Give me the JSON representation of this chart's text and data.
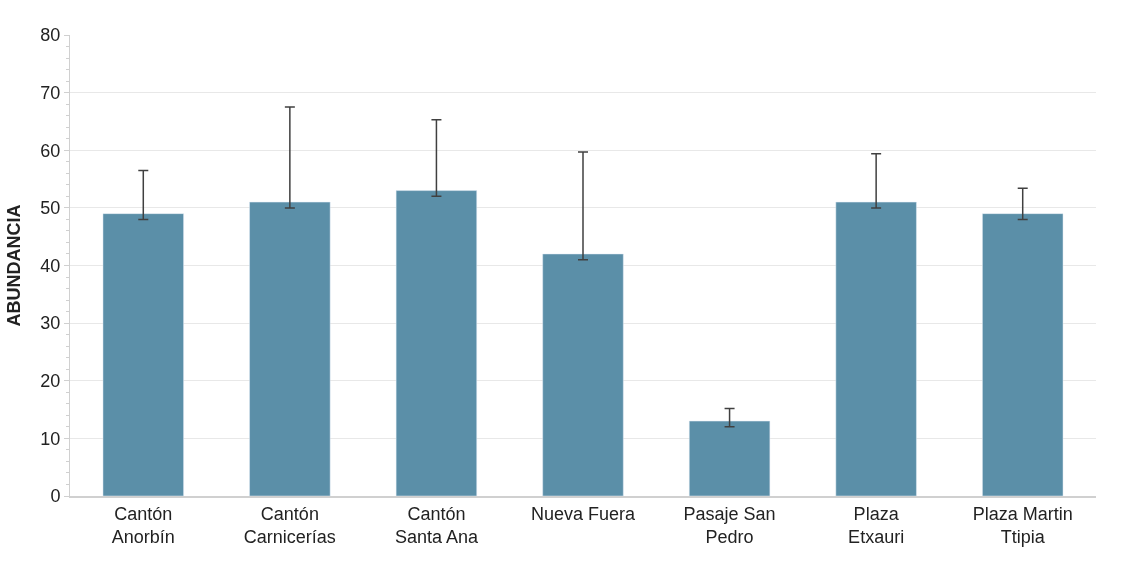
{
  "chart_data": {
    "type": "bar",
    "ylabel": "ABUNDANCIA",
    "categories": [
      "Cantón\nAnorbín",
      "Cantón\nCarnicerías",
      "Cantón\nSanta Ana",
      "Nueva Fuera",
      "Pasaje San\nPedro",
      "Plaza\nEtxauri",
      "Plaza Martin\nTtipia"
    ],
    "series": [
      {
        "color": "#5b8fa8",
        "values": [
          49,
          51,
          53,
          42,
          13,
          51,
          49
        ],
        "errors": [
          [
            48,
            56.5
          ],
          [
            50,
            67.5
          ],
          [
            52,
            65.3
          ],
          [
            41,
            59.7
          ],
          [
            12,
            15.2
          ],
          [
            50,
            59.4
          ],
          [
            48,
            53.4
          ]
        ]
      }
    ],
    "ylim": [
      0,
      80
    ],
    "yticks": [
      0,
      10,
      20,
      30,
      40,
      50,
      60,
      70,
      80
    ],
    "grid": "y",
    "legend": false
  }
}
